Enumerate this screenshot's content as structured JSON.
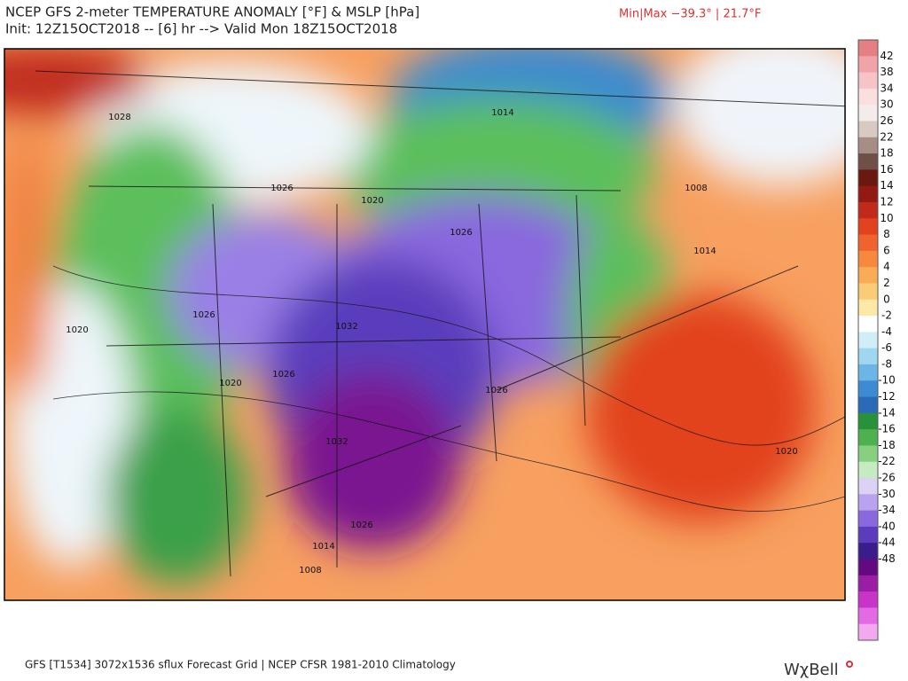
{
  "header": {
    "title": "NCEP GFS 2-meter TEMPERATURE ANOMALY [°F] & MSLP [hPa]",
    "subtitle": "Init: 12Z15OCT2018 -- [6] hr --> Valid Mon 18Z15OCT2018",
    "minmax": "Min|Max −39.3° | 21.7°F"
  },
  "isobar_labels": [
    "1028",
    "1014",
    "1026",
    "1020",
    "1026",
    "1008",
    "1014",
    "1026",
    "1020",
    "1032",
    "1020",
    "1026",
    "1026",
    "1032",
    "1020",
    "1014",
    "1026",
    "1008"
  ],
  "colorbar": {
    "labels": [
      "42",
      "38",
      "34",
      "30",
      "26",
      "22",
      "18",
      "16",
      "14",
      "12",
      "10",
      "8",
      "6",
      "4",
      "2",
      "0",
      "-2",
      "-4",
      "-6",
      "-8",
      "-10",
      "-12",
      "-14",
      "-16",
      "-18",
      "-22",
      "-26",
      "-30",
      "-34",
      "-40",
      "-44",
      "-48"
    ],
    "colors": [
      "#e57f84",
      "#f0a4a8",
      "#f6c4c6",
      "#fbdede",
      "#f4ecea",
      "#d9c9c3",
      "#a68d85",
      "#6e5048",
      "#6b1810",
      "#921a12",
      "#c02a1a",
      "#e2421f",
      "#f0622e",
      "#f7893f",
      "#f9ab55",
      "#fbcb75",
      "#fde8a8",
      "#ffffff",
      "#cfeef8",
      "#9fd6f0",
      "#6cb6e6",
      "#3d8bd4",
      "#2a6ab8",
      "#27923a",
      "#4fb04f",
      "#86d080",
      "#c4ecc0",
      "#dcd2f4",
      "#b9a2ee",
      "#8a68de",
      "#5a3cbc",
      "#3a1c8c",
      "#640a80",
      "#9a1ea4",
      "#c834c8",
      "#e46ae4",
      "#f4a8f0"
    ]
  },
  "footer": "GFS [T1534] 3072x1536 sflux Forecast Grid | NCEP CFSR 1981-2010 Climatology",
  "logo": "WχBell"
}
